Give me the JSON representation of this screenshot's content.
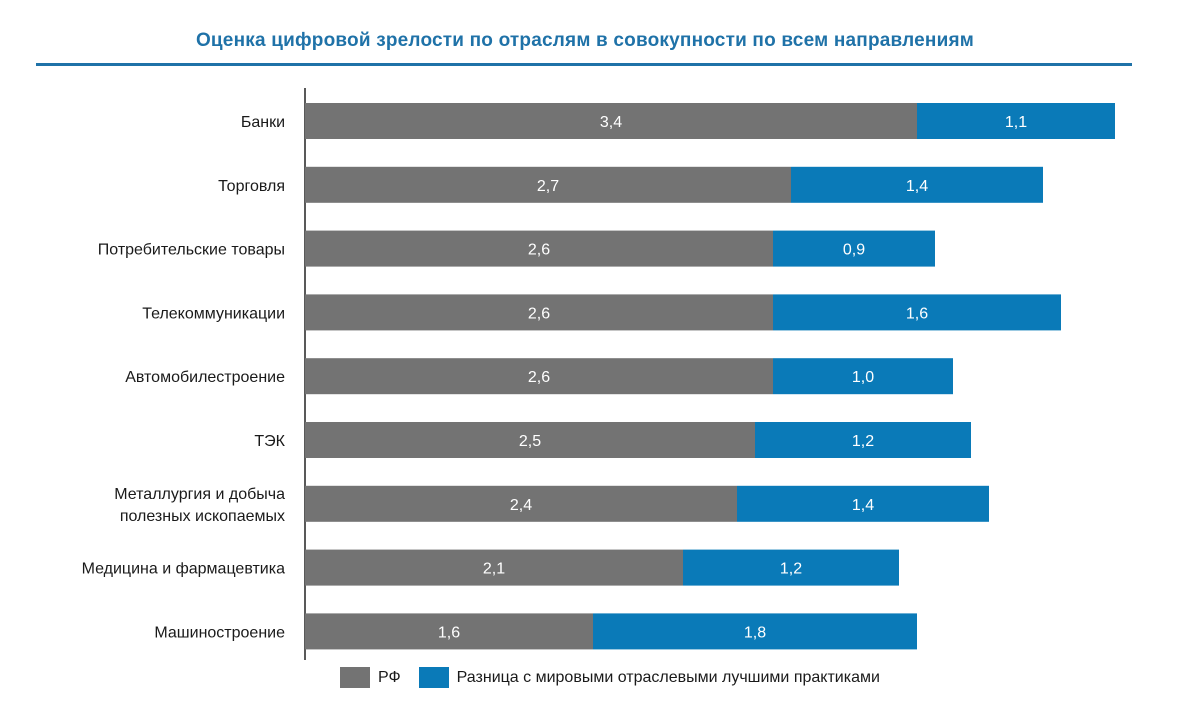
{
  "chart_data": {
    "type": "bar",
    "orientation": "horizontal",
    "stacked": true,
    "title": "Оценка цифровой зрелости по отраслям в совокупности по всем направлениям",
    "categories": [
      "Банки",
      "Торговля",
      "Потребительские товары",
      "Телекоммуникации",
      "Автомобилестроение",
      "ТЭК",
      "Металлургия и добыча полезных ископаемых",
      "Медицина и фармацевтика",
      "Машиностроение"
    ],
    "series": [
      {
        "name": "РФ",
        "color": "#737373",
        "values": [
          3.4,
          2.7,
          2.6,
          2.6,
          2.6,
          2.5,
          2.4,
          2.1,
          1.6
        ],
        "labels": [
          "3,4",
          "2,7",
          "2,6",
          "2,6",
          "2,6",
          "2,5",
          "2,4",
          "2,1",
          "1,6"
        ]
      },
      {
        "name": "Разница с мировыми отраслевыми лучшими практиками",
        "color": "#0a7ab8",
        "values": [
          1.1,
          1.4,
          0.9,
          1.6,
          1.0,
          1.2,
          1.4,
          1.2,
          1.8
        ],
        "labels": [
          "1,1",
          "1,4",
          "0,9",
          "1,6",
          "1,0",
          "1,2",
          "1,4",
          "1,2",
          "1,8"
        ]
      }
    ],
    "xlabel": "",
    "ylabel": "",
    "xlim": [
      0,
      4.5
    ],
    "grid": false,
    "legend_position": "bottom"
  }
}
